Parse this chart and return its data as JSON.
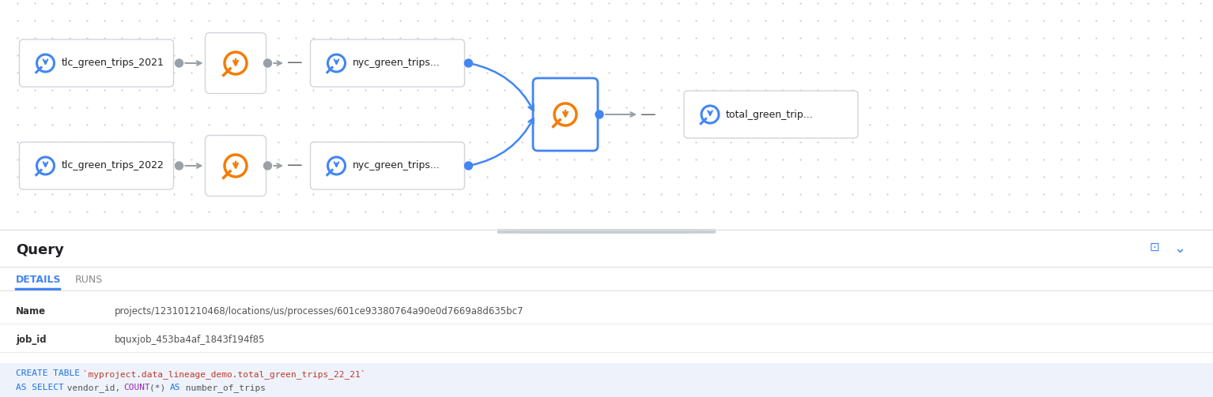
{
  "bg_top": "#edf0f5",
  "bg_bot": "#ffffff",
  "query_label": "Query",
  "details_tab": "DETAILS",
  "runs_tab": "RUNS",
  "name_label": "Name",
  "name_value": "projects/123101210468/locations/us/processes/601ce93380764a90e0d7669a8d635bc7",
  "job_id_label": "job_id",
  "job_id_value": "bquxjob_453ba4af_1843f194f85",
  "color_keyword": "#1a73e8",
  "color_backtick": "#c0392b",
  "color_func": "#9c27b0",
  "color_normal": "#555555",
  "color_comment": "#aaaaaa",
  "divider_color": "#e0e0e0",
  "node_fill": "#ffffff",
  "node_edge": "#d0d4da",
  "dot_grid_color": "#c8ccd2",
  "blue_icon": "#4285f4",
  "orange_icon": "#f57c00",
  "arrow_gray": "#9aa0a6",
  "arrow_blue": "#4285f4",
  "collapse_btn": "#c8cdd4"
}
